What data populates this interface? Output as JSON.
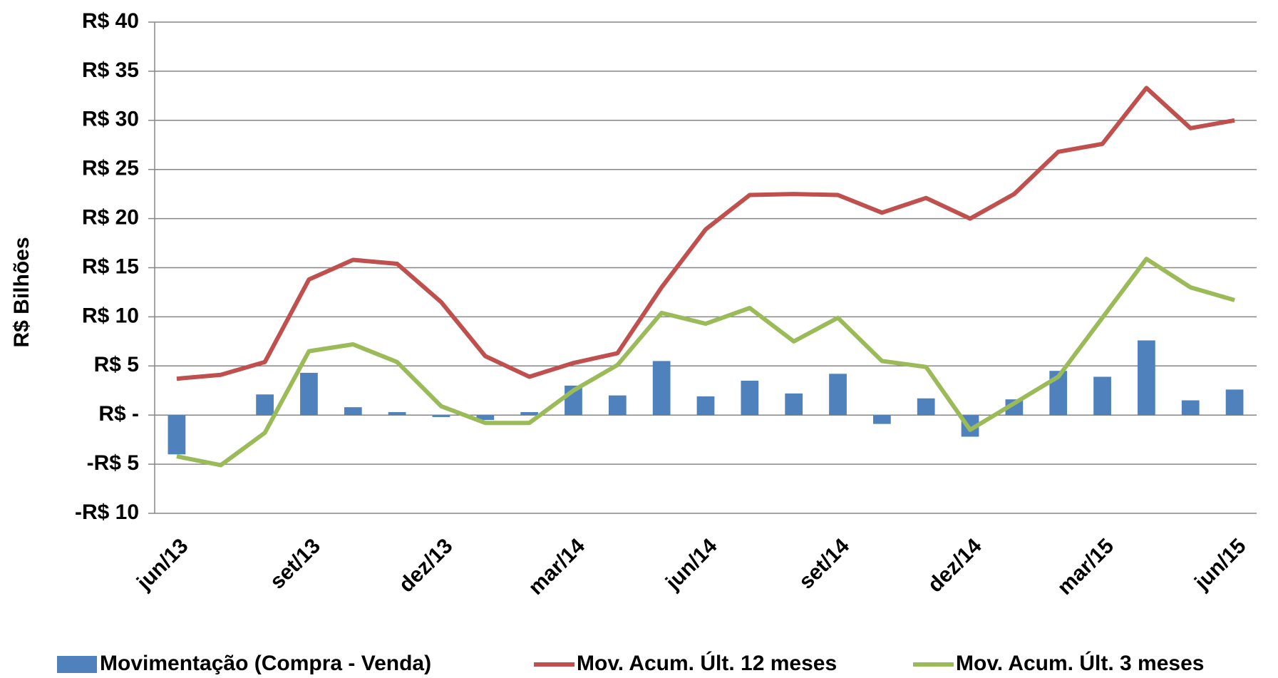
{
  "chart_data": {
    "type": "combo",
    "y_label": "R$ Bilhões",
    "categories": [
      "jun/13",
      null,
      null,
      "set/13",
      null,
      null,
      "dez/13",
      null,
      null,
      "mar/14",
      null,
      null,
      "jun/14",
      null,
      null,
      "set/14",
      null,
      null,
      "dez/14",
      null,
      null,
      "mar/15",
      null,
      null,
      "jun/15"
    ],
    "series": [
      {
        "name": "Movimentação (Compra - Venda)",
        "type": "bar",
        "color": "#4f81bd",
        "values": [
          -4.0,
          0,
          2.1,
          4.3,
          0.8,
          0.3,
          -0.2,
          -0.5,
          0.3,
          3.0,
          2.0,
          5.5,
          1.9,
          3.5,
          2.2,
          4.2,
          -0.9,
          1.7,
          -2.2,
          1.6,
          4.5,
          3.9,
          7.6,
          1.5,
          2.6
        ]
      },
      {
        "name": "Mov. Acum. Últ. 12 meses",
        "type": "line",
        "color": "#c0504d",
        "values": [
          3.7,
          4.1,
          5.4,
          13.8,
          15.8,
          15.4,
          11.5,
          6.0,
          3.9,
          5.3,
          6.3,
          13.0,
          18.9,
          22.4,
          22.5,
          22.4,
          20.6,
          22.1,
          20.0,
          22.5,
          26.8,
          27.6,
          33.3,
          29.2,
          30.0
        ]
      },
      {
        "name": "Mov. Acum. Últ. 3 meses",
        "type": "line",
        "color": "#9bbb59",
        "values": [
          -4.2,
          -5.1,
          -1.8,
          6.5,
          7.2,
          5.4,
          0.9,
          -0.8,
          -0.8,
          2.5,
          5.1,
          10.4,
          9.3,
          10.9,
          7.5,
          9.9,
          5.5,
          4.9,
          -1.5,
          1.2,
          3.9,
          9.9,
          15.9,
          13.0,
          11.7
        ]
      }
    ],
    "ylim": [
      -10,
      40
    ],
    "yticks": [
      {
        "value": -10,
        "label": "-R$ 10"
      },
      {
        "value": -5,
        "label": "-R$ 5"
      },
      {
        "value": 0,
        "label": "R$ -"
      },
      {
        "value": 5,
        "label": "R$ 5"
      },
      {
        "value": 10,
        "label": "R$ 10"
      },
      {
        "value": 15,
        "label": "R$ 15"
      },
      {
        "value": 20,
        "label": "R$ 20"
      },
      {
        "value": 25,
        "label": "R$ 25"
      },
      {
        "value": 30,
        "label": "R$ 30"
      },
      {
        "value": 35,
        "label": "R$ 35"
      },
      {
        "value": 40,
        "label": "R$ 40"
      }
    ],
    "grid": true,
    "legend": "bottom"
  }
}
